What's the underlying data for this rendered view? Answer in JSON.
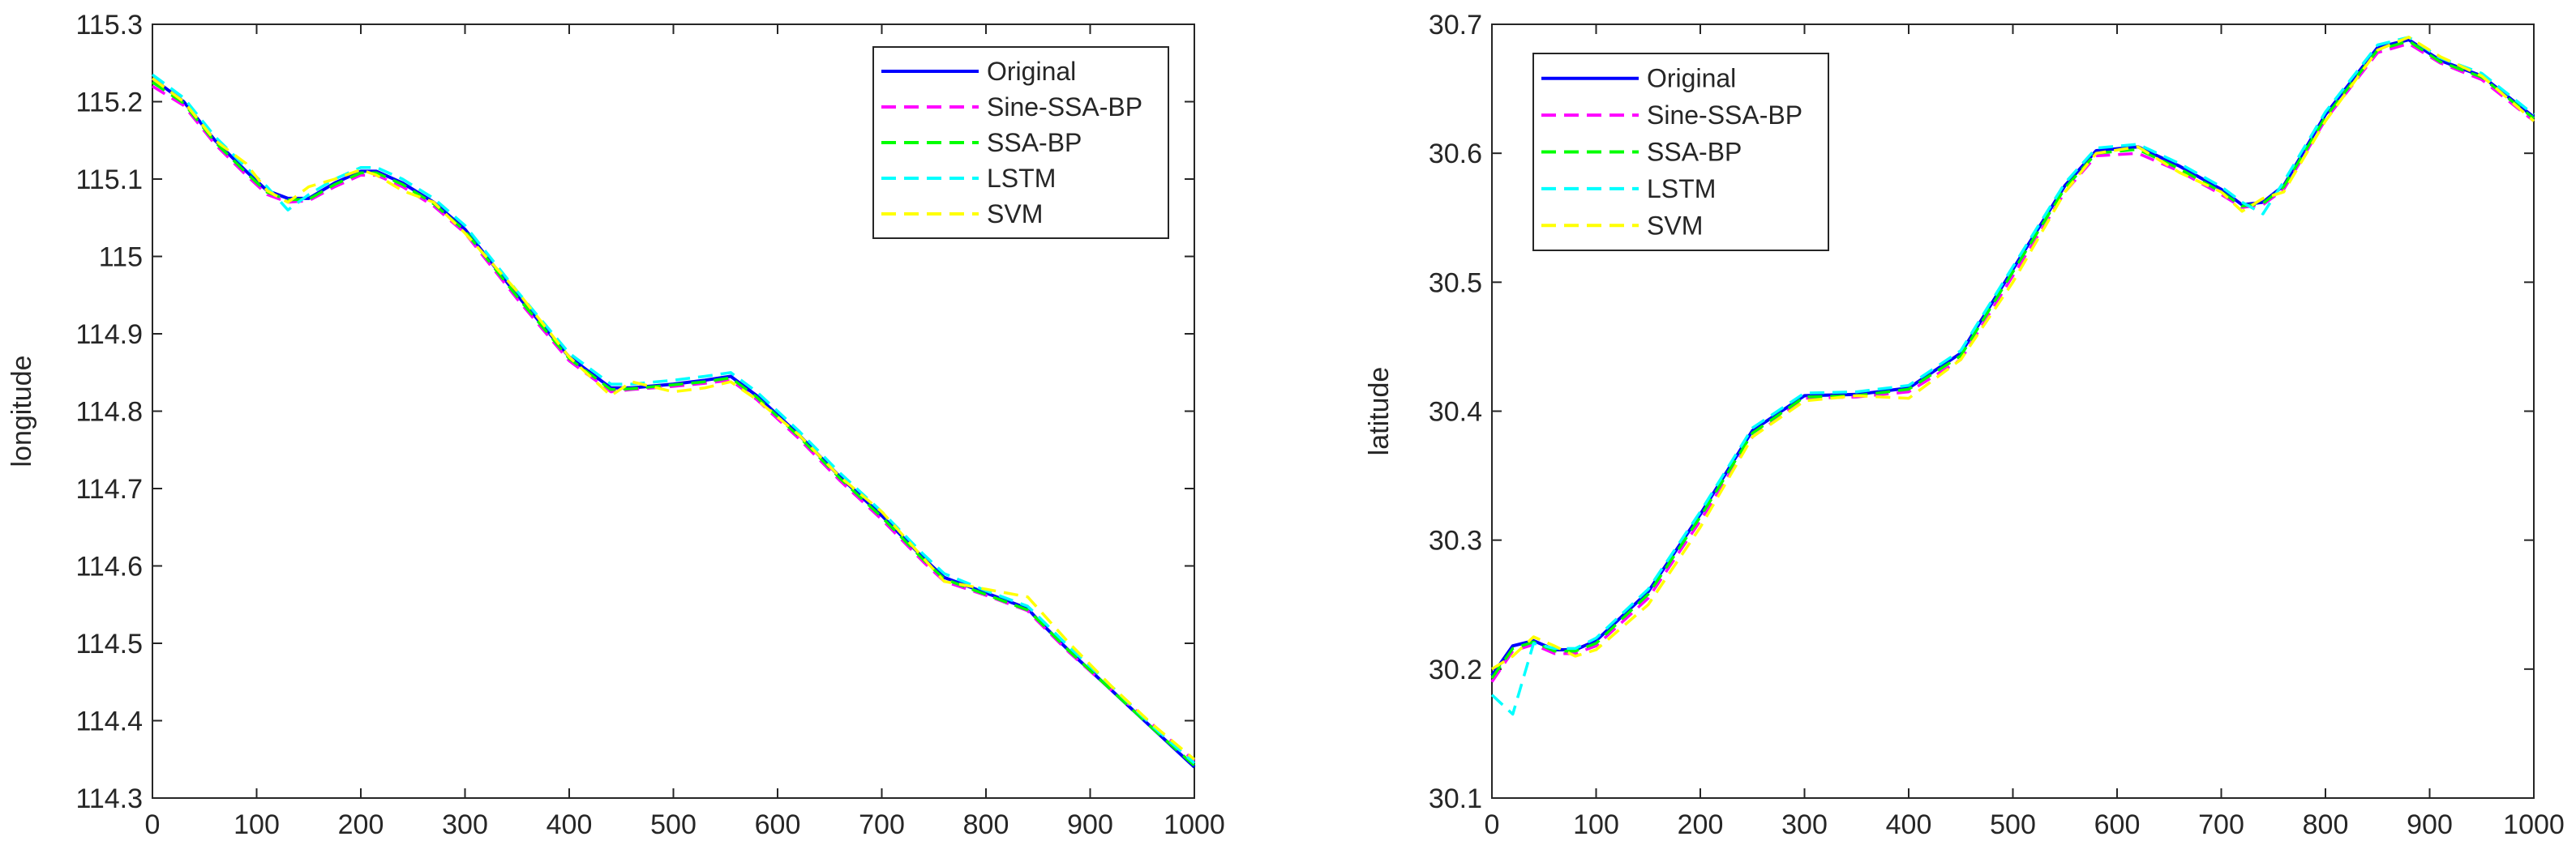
{
  "chart_data": [
    {
      "type": "line",
      "title": "",
      "xlabel": "",
      "ylabel": "longitude",
      "xlim": [
        0,
        1000
      ],
      "ylim": [
        114.3,
        115.3
      ],
      "xticks": [
        "0",
        "100",
        "200",
        "300",
        "400",
        "500",
        "600",
        "700",
        "800",
        "900",
        "1000"
      ],
      "yticks": [
        "114.3",
        "114.4",
        "114.5",
        "114.6",
        "114.7",
        "114.8",
        "114.9",
        "115",
        "115.1",
        "115.2",
        "115.3"
      ],
      "grid": false,
      "legend_position": "top-right",
      "x": [
        0,
        30,
        60,
        90,
        110,
        130,
        150,
        175,
        200,
        215,
        240,
        270,
        300,
        350,
        400,
        440,
        460,
        500,
        530,
        555,
        580,
        620,
        660,
        700,
        740,
        760,
        800,
        840,
        850,
        880,
        920,
        960,
        1000
      ],
      "series": [
        {
          "name": "Original",
          "color": "#0000ff",
          "dash": "solid",
          "values": [
            115.23,
            115.2,
            115.15,
            115.11,
            115.085,
            115.075,
            115.075,
            115.095,
            115.11,
            115.11,
            115.095,
            115.07,
            115.035,
            114.95,
            114.87,
            114.83,
            114.83,
            114.835,
            114.84,
            114.845,
            114.82,
            114.77,
            114.715,
            114.665,
            114.61,
            114.585,
            114.565,
            114.545,
            114.53,
            114.49,
            114.44,
            114.39,
            114.34
          ]
        },
        {
          "name": "Sine-SSA-BP",
          "color": "#ff00ff",
          "dash": "dashed",
          "values": [
            115.22,
            115.195,
            115.145,
            115.105,
            115.08,
            115.07,
            115.072,
            115.09,
            115.105,
            115.105,
            115.09,
            115.065,
            115.03,
            114.945,
            114.865,
            114.825,
            114.828,
            114.832,
            114.836,
            114.84,
            114.815,
            114.765,
            114.71,
            114.66,
            114.605,
            114.58,
            114.562,
            114.542,
            114.528,
            114.488,
            114.44,
            114.395,
            114.348
          ]
        },
        {
          "name": "SSA-BP",
          "color": "#00ff00",
          "dash": "dashed",
          "values": [
            115.225,
            115.198,
            115.148,
            115.108,
            115.083,
            115.073,
            115.074,
            115.093,
            115.108,
            115.108,
            115.093,
            115.068,
            115.033,
            114.948,
            114.868,
            114.828,
            114.829,
            114.834,
            114.838,
            114.843,
            114.818,
            114.768,
            114.713,
            114.663,
            114.608,
            114.583,
            114.563,
            114.543,
            114.53,
            114.49,
            114.44,
            114.39,
            114.342
          ]
        },
        {
          "name": "LSTM",
          "color": "#00ffff",
          "dash": "dashed",
          "values": [
            115.235,
            115.205,
            115.155,
            115.115,
            115.09,
            115.06,
            115.08,
            115.1,
            115.115,
            115.115,
            115.1,
            115.075,
            115.04,
            114.955,
            114.875,
            114.835,
            114.835,
            114.84,
            114.845,
            114.85,
            114.825,
            114.775,
            114.72,
            114.67,
            114.615,
            114.59,
            114.568,
            114.548,
            114.535,
            114.495,
            114.445,
            114.393,
            114.345
          ]
        },
        {
          "name": "SVM",
          "color": "#ffff00",
          "dash": "dashed",
          "values": [
            115.23,
            115.2,
            115.15,
            115.12,
            115.085,
            115.07,
            115.09,
            115.1,
            115.112,
            115.105,
            115.085,
            115.07,
            115.03,
            114.955,
            114.87,
            114.82,
            114.838,
            114.825,
            114.83,
            114.838,
            114.815,
            114.77,
            114.715,
            114.67,
            114.61,
            114.58,
            114.57,
            114.56,
            114.545,
            114.5,
            114.445,
            114.395,
            114.35
          ]
        }
      ]
    },
    {
      "type": "line",
      "title": "",
      "xlabel": "",
      "ylabel": "latitude",
      "xlim": [
        0,
        1000
      ],
      "ylim": [
        30.1,
        30.7
      ],
      "xticks": [
        "0",
        "100",
        "200",
        "300",
        "400",
        "500",
        "600",
        "700",
        "800",
        "900",
        "1000"
      ],
      "yticks": [
        "30.1",
        "30.2",
        "30.3",
        "30.4",
        "30.5",
        "30.6",
        "30.7"
      ],
      "grid": false,
      "legend_position": "top-left",
      "x": [
        0,
        20,
        40,
        60,
        80,
        100,
        150,
        200,
        250,
        300,
        350,
        400,
        450,
        500,
        550,
        580,
        620,
        660,
        700,
        720,
        740,
        760,
        800,
        850,
        880,
        910,
        950,
        1000
      ],
      "series": [
        {
          "name": "Original",
          "color": "#0000ff",
          "dash": "solid",
          "values": [
            30.195,
            30.218,
            30.222,
            30.215,
            30.215,
            30.222,
            30.26,
            30.32,
            30.385,
            30.412,
            30.413,
            30.418,
            30.445,
            30.51,
            30.575,
            30.602,
            30.605,
            30.59,
            30.572,
            30.56,
            30.562,
            30.575,
            30.63,
            30.682,
            30.688,
            30.672,
            30.66,
            30.628
          ]
        },
        {
          "name": "Sine-SSA-BP",
          "color": "#ff00ff",
          "dash": "dashed",
          "values": [
            30.19,
            30.214,
            30.219,
            30.212,
            30.212,
            30.218,
            30.255,
            30.315,
            30.38,
            30.41,
            30.411,
            30.415,
            30.44,
            30.505,
            30.57,
            30.598,
            30.6,
            30.586,
            30.568,
            30.558,
            30.56,
            30.572,
            30.626,
            30.678,
            30.685,
            30.67,
            30.657,
            30.625
          ]
        },
        {
          "name": "SSA-BP",
          "color": "#00ff00",
          "dash": "dashed",
          "values": [
            30.193,
            30.216,
            30.221,
            30.214,
            30.214,
            30.22,
            30.258,
            30.318,
            30.383,
            30.411,
            30.412,
            30.417,
            30.443,
            30.508,
            30.573,
            30.6,
            30.603,
            30.588,
            30.57,
            30.559,
            30.561,
            30.574,
            30.628,
            30.68,
            30.687,
            30.671,
            30.659,
            30.627
          ]
        },
        {
          "name": "LSTM",
          "color": "#00ffff",
          "dash": "dashed",
          "values": [
            30.18,
            30.165,
            30.22,
            30.216,
            30.216,
            30.224,
            30.262,
            30.322,
            30.387,
            30.414,
            30.415,
            30.42,
            30.447,
            30.512,
            30.577,
            30.604,
            30.607,
            30.592,
            30.574,
            30.562,
            30.553,
            30.578,
            30.632,
            30.684,
            30.69,
            30.674,
            30.662,
            30.63
          ]
        },
        {
          "name": "SVM",
          "color": "#ffff00",
          "dash": "dashed",
          "values": [
            30.2,
            30.21,
            30.225,
            30.218,
            30.21,
            30.215,
            30.25,
            30.31,
            30.38,
            30.408,
            30.412,
            30.41,
            30.44,
            30.5,
            30.57,
            30.6,
            30.605,
            30.585,
            30.57,
            30.555,
            30.565,
            30.57,
            30.625,
            30.68,
            30.69,
            30.675,
            30.66,
            30.625
          ]
        }
      ]
    }
  ]
}
